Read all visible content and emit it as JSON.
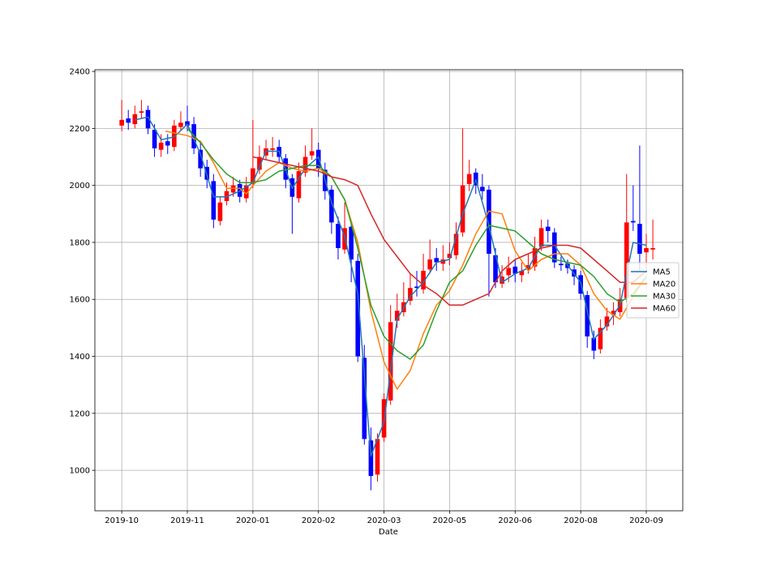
{
  "chart_data": {
    "type": "candlestick",
    "xlabel": "Date",
    "xlim": [
      -12.3,
      256.7
    ],
    "ylim": [
      858,
      2406
    ],
    "xticks": [
      {
        "value": 0,
        "label": "2019-10"
      },
      {
        "value": 30,
        "label": "2019-11"
      },
      {
        "value": 60,
        "label": "2020-01"
      },
      {
        "value": 90,
        "label": "2020-02"
      },
      {
        "value": 120,
        "label": "2020-03"
      },
      {
        "value": 150,
        "label": "2020-05"
      },
      {
        "value": 180,
        "label": "2020-06"
      },
      {
        "value": 210,
        "label": "2020-08"
      },
      {
        "value": 240,
        "label": "2020-09"
      }
    ],
    "yticks": [
      1000,
      1200,
      1400,
      1600,
      1800,
      2000,
      2200,
      2400
    ],
    "grid": true,
    "legend": "center right",
    "up_color": "#ff0000",
    "down_color": "#0000ff",
    "candles": {
      "x": [
        0,
        3,
        6,
        9,
        12,
        15,
        18,
        21,
        24,
        27,
        30,
        33,
        36,
        39,
        42,
        45,
        48,
        51,
        54,
        57,
        60,
        63,
        66,
        69,
        72,
        75,
        78,
        81,
        84,
        87,
        90,
        93,
        96,
        99,
        102,
        105,
        108,
        111,
        114,
        117,
        120,
        123,
        126,
        129,
        132,
        135,
        138,
        141,
        144,
        147,
        150,
        153,
        156,
        159,
        162,
        165,
        168,
        171,
        174,
        177,
        180,
        183,
        186,
        189,
        192,
        195,
        198,
        201,
        204,
        207,
        210,
        213,
        216,
        219,
        222,
        225,
        228,
        231,
        234,
        237,
        240,
        243
      ],
      "open": [
        2210,
        2235,
        2215,
        2255,
        2265,
        2195,
        2125,
        2155,
        2135,
        2205,
        2225,
        2215,
        2125,
        2065,
        2015,
        1875,
        1945,
        1975,
        2005,
        1955,
        2005,
        2055,
        2105,
        2125,
        2135,
        2095,
        2025,
        1955,
        2045,
        2105,
        2125,
        2055,
        1985,
        1865,
        1775,
        1855,
        1735,
        1395,
        1105,
        985,
        1115,
        1245,
        1525,
        1555,
        1595,
        1645,
        1635,
        1705,
        1745,
        1725,
        1745,
        1755,
        1835,
        2005,
        2045,
        1995,
        1985,
        1755,
        1655,
        1685,
        1715,
        1685,
        1705,
        1715,
        1785,
        1855,
        1835,
        1725,
        1725,
        1705,
        1685,
        1615,
        1465,
        1425,
        1505,
        1545,
        1555,
        1605,
        1875,
        1865,
        1765,
        1775
      ],
      "high": [
        2300,
        2265,
        2280,
        2300,
        2280,
        2215,
        2180,
        2180,
        2230,
        2260,
        2280,
        2240,
        2150,
        2090,
        2040,
        1960,
        2010,
        2030,
        2020,
        2030,
        2230,
        2140,
        2160,
        2170,
        2160,
        2110,
        2040,
        2080,
        2140,
        2200,
        2150,
        2080,
        2000,
        1890,
        1940,
        1870,
        1760,
        1440,
        1150,
        1130,
        1270,
        1580,
        1620,
        1660,
        1690,
        1700,
        1760,
        1810,
        1780,
        1790,
        1800,
        1870,
        2200,
        2090,
        2060,
        2040,
        2000,
        1780,
        1720,
        1750,
        1740,
        1730,
        1760,
        1820,
        1880,
        1880,
        1850,
        1750,
        1740,
        1720,
        1700,
        1630,
        1490,
        1530,
        1570,
        1590,
        1640,
        2040,
        2000,
        2140,
        1830,
        1880
      ],
      "low": [
        2190,
        2195,
        2200,
        2235,
        2180,
        2100,
        2100,
        2110,
        2120,
        2190,
        2190,
        2110,
        2030,
        1990,
        1850,
        1860,
        1930,
        1960,
        1940,
        1940,
        1990,
        2040,
        2090,
        2100,
        2080,
        1990,
        1830,
        1940,
        2030,
        2090,
        2030,
        1950,
        1830,
        1740,
        1760,
        1660,
        1380,
        1090,
        930,
        960,
        1100,
        1230,
        1500,
        1540,
        1580,
        1610,
        1620,
        1690,
        1700,
        1700,
        1720,
        1740,
        1820,
        1980,
        1970,
        1950,
        1610,
        1640,
        1640,
        1660,
        1660,
        1660,
        1690,
        1700,
        1770,
        1800,
        1710,
        1700,
        1690,
        1650,
        1600,
        1430,
        1390,
        1410,
        1490,
        1510,
        1540,
        1590,
        1840,
        1700,
        1700,
        1740
      ],
      "close": [
        2230,
        2220,
        2250,
        2260,
        2200,
        2130,
        2150,
        2140,
        2210,
        2220,
        2210,
        2130,
        2060,
        2020,
        1880,
        1940,
        1980,
        2000,
        1960,
        2000,
        2060,
        2100,
        2130,
        2130,
        2100,
        2020,
        1960,
        2050,
        2100,
        2120,
        2060,
        1980,
        1870,
        1780,
        1850,
        1740,
        1400,
        1110,
        980,
        1110,
        1250,
        1520,
        1560,
        1590,
        1640,
        1640,
        1700,
        1740,
        1730,
        1740,
        1760,
        1830,
        2000,
        2040,
        2000,
        1980,
        1760,
        1660,
        1680,
        1710,
        1690,
        1700,
        1720,
        1780,
        1850,
        1840,
        1730,
        1720,
        1710,
        1680,
        1620,
        1470,
        1420,
        1500,
        1540,
        1560,
        1600,
        1870,
        1870,
        1760,
        1780,
        1780
      ]
    },
    "series": [
      {
        "name": "MA5",
        "color": "#1f77b4",
        "x": [
          6,
          12,
          18,
          24,
          30,
          36,
          42,
          48,
          54,
          60,
          66,
          72,
          78,
          84,
          90,
          96,
          102,
          108,
          114,
          120,
          126,
          132,
          138,
          144,
          150,
          156,
          162,
          168,
          174,
          180,
          186,
          192,
          198,
          204,
          210,
          216,
          222,
          228,
          234,
          240
        ],
        "values": [
          2230,
          2240,
          2160,
          2170,
          2215,
          2110,
          1960,
          1960,
          1980,
          2010,
          2120,
          2120,
          1990,
          2060,
          2100,
          1940,
          1820,
          1620,
          1050,
          1170,
          1530,
          1610,
          1660,
          1730,
          1740,
          1900,
          2020,
          1860,
          1660,
          1690,
          1710,
          1790,
          1790,
          1720,
          1660,
          1460,
          1510,
          1580,
          1800,
          1790
        ]
      },
      {
        "name": "MA20",
        "color": "#ff7f0e",
        "x": [
          20,
          30,
          36,
          42,
          48,
          54,
          57,
          60,
          66,
          72,
          78,
          84,
          90,
          96,
          102,
          108,
          114,
          120,
          126,
          132,
          138,
          144,
          150,
          156,
          162,
          168,
          174,
          180,
          186,
          192,
          198,
          204,
          210,
          216,
          222,
          228,
          234,
          240
        ],
        "values": [
          2190,
          2175,
          2155,
          2080,
          1990,
          1990,
          1970,
          2000,
          2050,
          2080,
          2060,
          2050,
          2060,
          2030,
          1950,
          1800,
          1560,
          1380,
          1285,
          1350,
          1480,
          1580,
          1630,
          1720,
          1830,
          1910,
          1900,
          1770,
          1700,
          1740,
          1760,
          1760,
          1720,
          1620,
          1560,
          1530,
          1610,
          1680
        ]
      },
      {
        "name": "MA30",
        "color": "#2ca02c",
        "x": [
          30,
          36,
          42,
          48,
          54,
          60,
          66,
          72,
          78,
          84,
          90,
          96,
          102,
          108,
          114,
          120,
          126,
          132,
          138,
          144,
          150,
          156,
          162,
          168,
          174,
          180,
          186,
          192,
          198,
          204,
          210,
          216,
          222,
          228,
          234,
          240
        ],
        "values": [
          2200,
          2150,
          2090,
          2040,
          2010,
          2010,
          2020,
          2050,
          2060,
          2070,
          2070,
          2030,
          1950,
          1780,
          1580,
          1470,
          1420,
          1390,
          1440,
          1560,
          1660,
          1700,
          1790,
          1860,
          1850,
          1840,
          1800,
          1760,
          1740,
          1730,
          1720,
          1680,
          1620,
          1590,
          1620,
          1680
        ]
      },
      {
        "name": "MA60",
        "color": "#d62728",
        "x": [
          60,
          66,
          72,
          78,
          84,
          90,
          96,
          102,
          108,
          114,
          120,
          126,
          132,
          138,
          144,
          150,
          156,
          162,
          168,
          174,
          180,
          186,
          192,
          198,
          204,
          210,
          216,
          222,
          228,
          234,
          240
        ],
        "values": [
          2100,
          2090,
          2080,
          2070,
          2060,
          2050,
          2030,
          2020,
          2000,
          1900,
          1810,
          1750,
          1690,
          1650,
          1620,
          1580,
          1580,
          1600,
          1620,
          1700,
          1740,
          1760,
          1780,
          1790,
          1790,
          1780,
          1740,
          1700,
          1660,
          1660,
          1700
        ]
      }
    ]
  }
}
